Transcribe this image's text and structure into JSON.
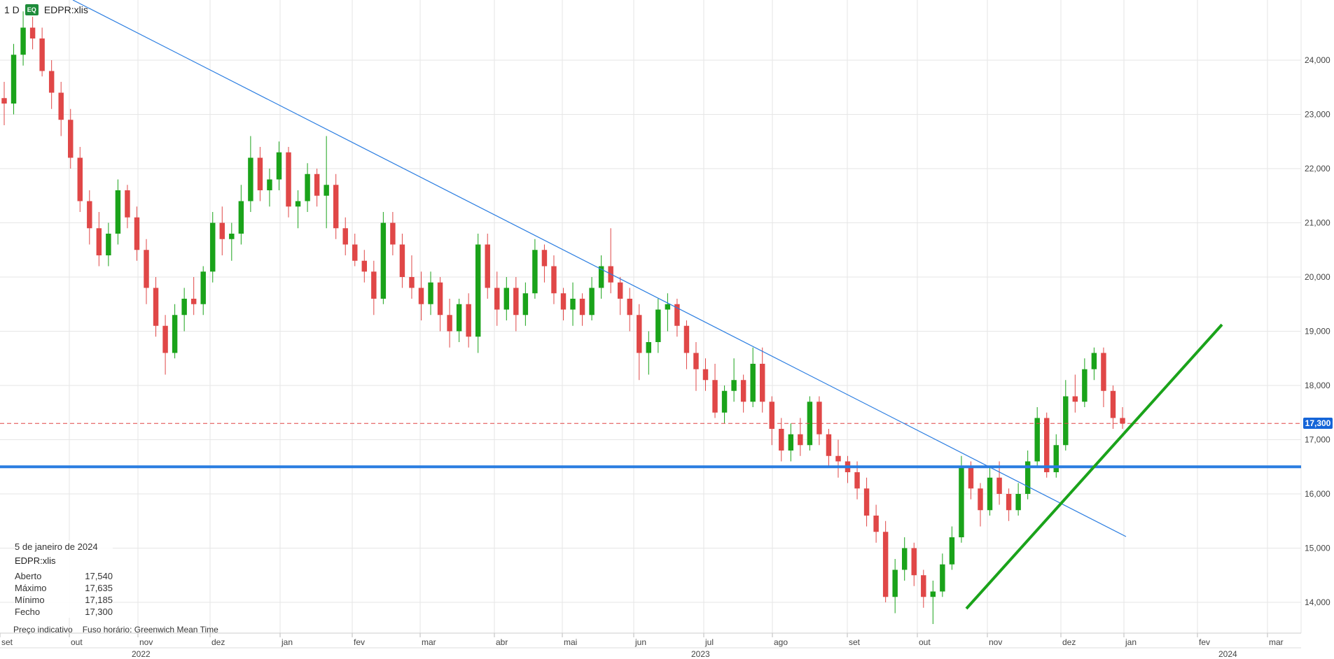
{
  "header": {
    "interval": "1 D",
    "badge": "EQ",
    "symbol": "EDPR:xlis"
  },
  "info_box": {
    "date": "5 de janeiro de 2024",
    "symbol": "EDPR:xlis",
    "rows": [
      {
        "label": "Aberto",
        "value": "17,540"
      },
      {
        "label": "Máximo",
        "value": "17,635"
      },
      {
        "label": "Mínimo",
        "value": "17,185"
      },
      {
        "label": "Fecho",
        "value": "17,300"
      }
    ]
  },
  "footer": {
    "note1": "Preço indicativo",
    "note2": "Fuso horário: Greenwich Mean Time"
  },
  "price_badge": "17,300",
  "colors": {
    "up": "#1aa31a",
    "down": "#e04747",
    "trend_blue": "#2a7de1",
    "trend_green": "#1aa31a",
    "current_line": "#e04747"
  },
  "chart_data": {
    "type": "candlestick",
    "ylim": [
      13.55,
      25.0
    ],
    "y_ticks": [
      "14,000",
      "15,000",
      "16,000",
      "17,000",
      "18,000",
      "19,000",
      "20,000",
      "21,000",
      "22,000",
      "23,000",
      "24,000"
    ],
    "x_ticks": [
      "set",
      "out",
      "nov",
      "dez",
      "jan",
      "fev",
      "mar",
      "abr",
      "mai",
      "jun",
      "jul",
      "ago",
      "set",
      "out",
      "nov",
      "dez",
      "jan",
      "fev",
      "mar"
    ],
    "years": [
      "2022",
      "2023",
      "2024"
    ],
    "current_price": 17.3,
    "support_level": 16.5,
    "candles": [
      [
        23.3,
        23.6,
        22.8,
        23.2
      ],
      [
        23.2,
        24.3,
        23.0,
        24.1
      ],
      [
        24.1,
        24.9,
        23.9,
        24.6
      ],
      [
        24.6,
        24.8,
        24.2,
        24.4
      ],
      [
        24.4,
        24.6,
        23.7,
        23.8
      ],
      [
        23.8,
        24.0,
        23.1,
        23.4
      ],
      [
        23.4,
        23.6,
        22.6,
        22.9
      ],
      [
        22.9,
        23.1,
        22.0,
        22.2
      ],
      [
        22.2,
        22.4,
        21.2,
        21.4
      ],
      [
        21.4,
        21.6,
        20.6,
        20.9
      ],
      [
        20.9,
        21.2,
        20.2,
        20.4
      ],
      [
        20.4,
        21.0,
        20.2,
        20.8
      ],
      [
        20.8,
        21.8,
        20.6,
        21.6
      ],
      [
        21.6,
        21.7,
        20.9,
        21.1
      ],
      [
        21.1,
        21.3,
        20.3,
        20.5
      ],
      [
        20.5,
        20.7,
        19.5,
        19.8
      ],
      [
        19.8,
        20.0,
        18.9,
        19.1
      ],
      [
        19.1,
        19.3,
        18.2,
        18.6
      ],
      [
        18.6,
        19.5,
        18.5,
        19.3
      ],
      [
        19.3,
        19.8,
        19.0,
        19.6
      ],
      [
        19.6,
        20.0,
        19.3,
        19.5
      ],
      [
        19.5,
        20.2,
        19.3,
        20.1
      ],
      [
        20.1,
        21.2,
        19.9,
        21.0
      ],
      [
        21.0,
        21.3,
        20.4,
        20.7
      ],
      [
        20.7,
        21.0,
        20.3,
        20.8
      ],
      [
        20.8,
        21.7,
        20.6,
        21.4
      ],
      [
        21.4,
        22.6,
        21.2,
        22.2
      ],
      [
        22.2,
        22.4,
        21.4,
        21.6
      ],
      [
        21.6,
        22.0,
        21.3,
        21.8
      ],
      [
        21.8,
        22.5,
        21.6,
        22.3
      ],
      [
        22.3,
        22.4,
        21.1,
        21.3
      ],
      [
        21.3,
        21.6,
        20.9,
        21.4
      ],
      [
        21.4,
        22.1,
        21.2,
        21.9
      ],
      [
        21.9,
        22.0,
        21.3,
        21.5
      ],
      [
        21.5,
        22.6,
        20.9,
        21.7
      ],
      [
        21.7,
        21.9,
        20.7,
        20.9
      ],
      [
        20.9,
        21.1,
        20.4,
        20.6
      ],
      [
        20.6,
        20.8,
        20.2,
        20.3
      ],
      [
        20.3,
        20.5,
        19.9,
        20.1
      ],
      [
        20.1,
        20.3,
        19.3,
        19.6
      ],
      [
        19.6,
        21.2,
        19.5,
        21.0
      ],
      [
        21.0,
        21.2,
        20.4,
        20.6
      ],
      [
        20.6,
        20.8,
        19.8,
        20.0
      ],
      [
        20.0,
        20.4,
        19.6,
        19.8
      ],
      [
        19.8,
        20.1,
        19.2,
        19.5
      ],
      [
        19.5,
        20.1,
        19.3,
        19.9
      ],
      [
        19.9,
        20.0,
        19.0,
        19.3
      ],
      [
        19.3,
        19.6,
        18.7,
        19.0
      ],
      [
        19.0,
        19.6,
        18.8,
        19.5
      ],
      [
        19.5,
        19.7,
        18.7,
        18.9
      ],
      [
        18.9,
        20.8,
        18.6,
        20.6
      ],
      [
        20.6,
        20.8,
        19.6,
        19.8
      ],
      [
        19.8,
        20.1,
        19.1,
        19.4
      ],
      [
        19.4,
        20.0,
        19.2,
        19.8
      ],
      [
        19.8,
        20.0,
        19.0,
        19.3
      ],
      [
        19.3,
        19.9,
        19.1,
        19.7
      ],
      [
        19.7,
        20.7,
        19.6,
        20.5
      ],
      [
        20.5,
        20.6,
        19.9,
        20.2
      ],
      [
        20.2,
        20.4,
        19.5,
        19.7
      ],
      [
        19.7,
        19.8,
        19.2,
        19.4
      ],
      [
        19.4,
        19.9,
        19.1,
        19.6
      ],
      [
        19.6,
        19.7,
        19.1,
        19.3
      ],
      [
        19.3,
        20.0,
        19.2,
        19.8
      ],
      [
        19.8,
        20.4,
        19.6,
        20.2
      ],
      [
        20.2,
        20.9,
        19.7,
        19.9
      ],
      [
        19.9,
        20.0,
        19.3,
        19.6
      ],
      [
        19.6,
        19.8,
        19.0,
        19.3
      ],
      [
        19.3,
        19.5,
        18.1,
        18.6
      ],
      [
        18.6,
        19.0,
        18.2,
        18.8
      ],
      [
        18.8,
        19.6,
        18.6,
        19.4
      ],
      [
        19.4,
        19.7,
        19.0,
        19.5
      ],
      [
        19.5,
        19.6,
        18.9,
        19.1
      ],
      [
        19.1,
        19.2,
        18.3,
        18.6
      ],
      [
        18.6,
        18.8,
        17.9,
        18.3
      ],
      [
        18.3,
        18.5,
        17.9,
        18.1
      ],
      [
        18.1,
        18.4,
        17.4,
        17.5
      ],
      [
        17.5,
        18.0,
        17.3,
        17.9
      ],
      [
        17.9,
        18.5,
        17.7,
        18.1
      ],
      [
        18.1,
        18.2,
        17.5,
        17.7
      ],
      [
        17.7,
        18.7,
        17.6,
        18.4
      ],
      [
        18.4,
        18.7,
        17.5,
        17.7
      ],
      [
        17.7,
        17.8,
        16.9,
        17.2
      ],
      [
        17.2,
        17.4,
        16.6,
        16.8
      ],
      [
        16.8,
        17.3,
        16.6,
        17.1
      ],
      [
        17.1,
        17.4,
        16.7,
        16.9
      ],
      [
        16.9,
        17.8,
        16.8,
        17.7
      ],
      [
        17.7,
        17.8,
        16.9,
        17.1
      ],
      [
        17.1,
        17.2,
        16.5,
        16.7
      ],
      [
        16.7,
        17.0,
        16.3,
        16.6
      ],
      [
        16.6,
        16.7,
        16.2,
        16.4
      ],
      [
        16.4,
        16.6,
        15.9,
        16.1
      ],
      [
        16.1,
        16.3,
        15.4,
        15.6
      ],
      [
        15.6,
        15.8,
        15.1,
        15.3
      ],
      [
        15.3,
        15.5,
        14.0,
        14.1
      ],
      [
        14.1,
        14.8,
        13.8,
        14.6
      ],
      [
        14.6,
        15.2,
        14.4,
        15.0
      ],
      [
        15.0,
        15.1,
        14.3,
        14.5
      ],
      [
        14.5,
        14.6,
        13.9,
        14.1
      ],
      [
        14.1,
        14.4,
        13.6,
        14.2
      ],
      [
        14.2,
        14.9,
        14.1,
        14.7
      ],
      [
        14.7,
        15.4,
        14.6,
        15.2
      ],
      [
        15.2,
        16.7,
        15.1,
        16.5
      ],
      [
        16.5,
        16.6,
        15.9,
        16.1
      ],
      [
        16.1,
        16.2,
        15.4,
        15.7
      ],
      [
        15.7,
        16.5,
        15.6,
        16.3
      ],
      [
        16.3,
        16.6,
        15.8,
        16.0
      ],
      [
        16.0,
        16.1,
        15.5,
        15.7
      ],
      [
        15.7,
        16.2,
        15.6,
        16.0
      ],
      [
        16.0,
        16.8,
        15.9,
        16.6
      ],
      [
        16.6,
        17.6,
        16.5,
        17.4
      ],
      [
        17.4,
        17.5,
        16.3,
        16.4
      ],
      [
        16.4,
        17.1,
        16.3,
        16.9
      ],
      [
        16.9,
        18.1,
        16.8,
        17.8
      ],
      [
        17.8,
        18.2,
        17.5,
        17.7
      ],
      [
        17.7,
        18.5,
        17.6,
        18.3
      ],
      [
        18.3,
        18.7,
        18.1,
        18.6
      ],
      [
        18.6,
        18.7,
        17.6,
        17.9
      ],
      [
        17.9,
        18.0,
        17.2,
        17.4
      ],
      [
        17.4,
        17.6,
        17.2,
        17.3
      ]
    ]
  }
}
